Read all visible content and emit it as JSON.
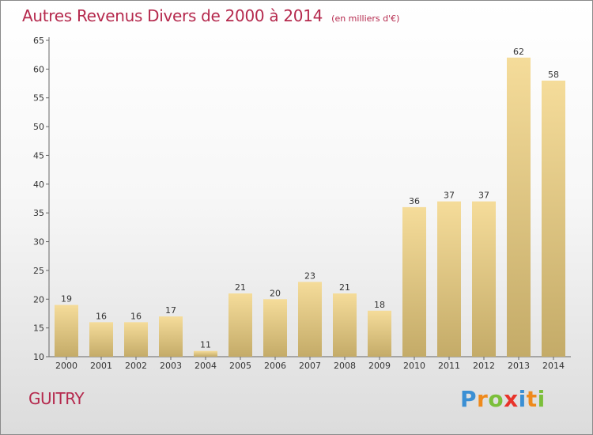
{
  "chart_data": {
    "type": "bar",
    "title": "Autres Revenus Divers de 2000 à 2014",
    "subtitle": "(en milliers d'€)",
    "xlabel": "",
    "ylabel": "",
    "categories": [
      "2000",
      "2001",
      "2002",
      "2003",
      "2004",
      "2005",
      "2006",
      "2007",
      "2008",
      "2009",
      "2010",
      "2011",
      "2012",
      "2013",
      "2014"
    ],
    "values": [
      19,
      16,
      16,
      17,
      11,
      21,
      20,
      23,
      21,
      18,
      36,
      37,
      37,
      62,
      58
    ],
    "ylim": [
      10,
      65
    ],
    "yticks": [
      10,
      15,
      20,
      25,
      30,
      35,
      40,
      45,
      50,
      55,
      60,
      65
    ],
    "grid": false,
    "legend": "none",
    "bar_color_top": "#f5dc9a",
    "bar_color_bottom": "#c4ab68"
  },
  "footer": {
    "commune": "GUITRY",
    "logo": {
      "letters": [
        "P",
        "r",
        "o",
        "x",
        "i",
        "t",
        "i"
      ],
      "colors": [
        "#3a8fd4",
        "#ef8a1c",
        "#7bbf3a",
        "#e8332a",
        "#3a8fd4",
        "#ef8a1c",
        "#7bbf3a"
      ]
    }
  },
  "colors": {
    "title": "#b5294d",
    "axis": "#666666",
    "frame": "#8a8a8a"
  }
}
